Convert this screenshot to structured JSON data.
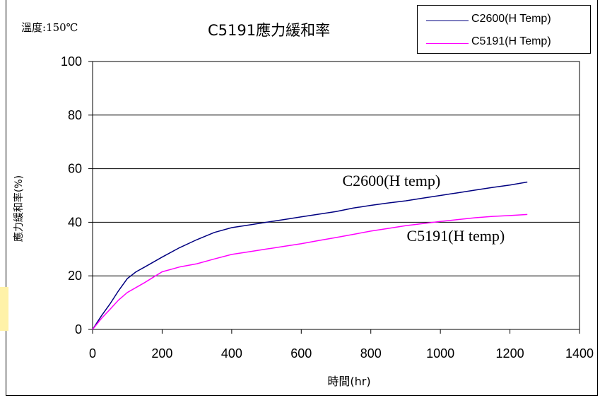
{
  "header": {
    "temperature_note": "溫度:150℃",
    "title": "C5191應力緩和率"
  },
  "legend": {
    "items": [
      {
        "label": "C2600(H Temp)",
        "color": "#000080"
      },
      {
        "label": "C5191(H Temp)",
        "color": "#ff00ff"
      }
    ]
  },
  "chart_data": {
    "type": "line",
    "title": "C5191應力緩和率",
    "xlabel": "時間(hr)",
    "ylabel": "應力緩和率(%)",
    "xlim": [
      0,
      1400
    ],
    "ylim": [
      0,
      100
    ],
    "x_ticks": [
      0,
      200,
      400,
      600,
      800,
      1000,
      1200,
      1400
    ],
    "y_ticks": [
      0,
      20,
      40,
      60,
      80,
      100
    ],
    "grid": "horizontal",
    "legend_position": "top-right",
    "series": [
      {
        "name": "C2600(H Temp)",
        "color": "#000080",
        "annotation": "C2600(H temp)",
        "points": [
          [
            0,
            0
          ],
          [
            25,
            5
          ],
          [
            50,
            9.5
          ],
          [
            75,
            14.5
          ],
          [
            100,
            19
          ],
          [
            125,
            21.5
          ],
          [
            150,
            23.3
          ],
          [
            200,
            27
          ],
          [
            250,
            30.5
          ],
          [
            300,
            33.5
          ],
          [
            350,
            36.2
          ],
          [
            400,
            38
          ],
          [
            450,
            39
          ],
          [
            500,
            40
          ],
          [
            550,
            41
          ],
          [
            600,
            42
          ],
          [
            650,
            43
          ],
          [
            700,
            44
          ],
          [
            750,
            45.3
          ],
          [
            800,
            46.3
          ],
          [
            850,
            47.2
          ],
          [
            900,
            48
          ],
          [
            950,
            49
          ],
          [
            1000,
            50
          ],
          [
            1050,
            51
          ],
          [
            1100,
            52
          ],
          [
            1150,
            53
          ],
          [
            1200,
            53.9
          ],
          [
            1250,
            55
          ]
        ]
      },
      {
        "name": "C5191(H Temp)",
        "color": "#ff00ff",
        "annotation": "C5191(H temp)",
        "points": [
          [
            0,
            0
          ],
          [
            25,
            4
          ],
          [
            50,
            7.5
          ],
          [
            75,
            11
          ],
          [
            100,
            13.8
          ],
          [
            150,
            17.5
          ],
          [
            200,
            21.5
          ],
          [
            250,
            23.3
          ],
          [
            300,
            24.5
          ],
          [
            350,
            26.3
          ],
          [
            400,
            28
          ],
          [
            450,
            29
          ],
          [
            500,
            30
          ],
          [
            550,
            31
          ],
          [
            600,
            32
          ],
          [
            650,
            33.2
          ],
          [
            700,
            34.3
          ],
          [
            750,
            35.5
          ],
          [
            800,
            36.7
          ],
          [
            850,
            37.7
          ],
          [
            900,
            38.7
          ],
          [
            950,
            39.5
          ],
          [
            1000,
            40.3
          ],
          [
            1050,
            41
          ],
          [
            1100,
            41.7
          ],
          [
            1150,
            42.2
          ],
          [
            1200,
            42.5
          ],
          [
            1250,
            42.9
          ]
        ]
      }
    ]
  }
}
